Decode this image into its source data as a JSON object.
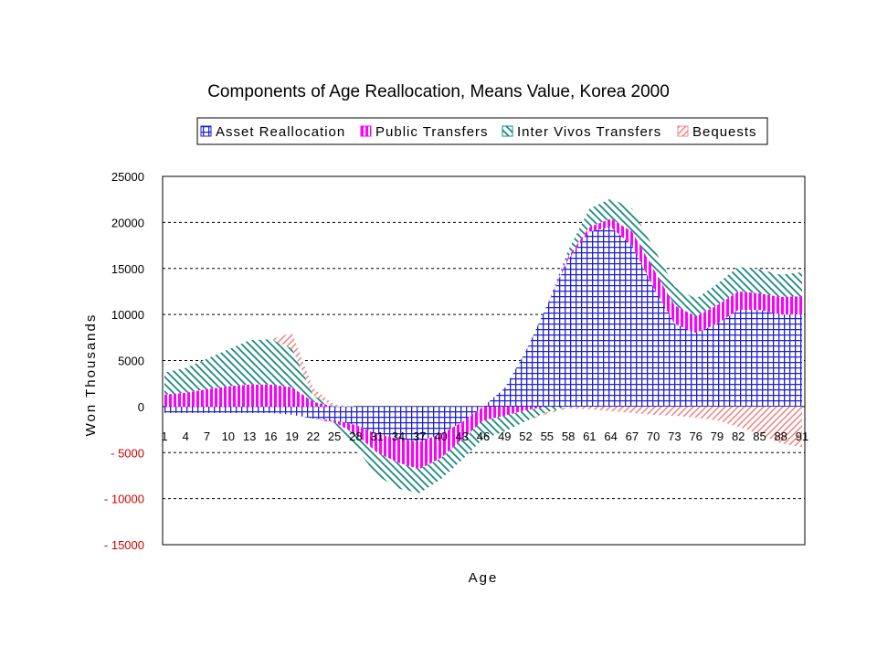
{
  "chart_data": {
    "type": "area",
    "stacked": true,
    "title": "Components of Age Reallocation, Means Value, Korea 2000",
    "xlabel": "Age",
    "ylabel": "Won Thousands",
    "ylim": [
      -15000,
      25000
    ],
    "ytick_labels": [
      "25000",
      "20000",
      "15000",
      "10000",
      "5000",
      "0",
      "- 5000",
      "- 10000",
      "- 15000"
    ],
    "grid": true,
    "legend_position": "top",
    "x_anchor_ages": [
      1,
      4,
      7,
      10,
      13,
      16,
      19,
      22,
      25,
      28,
      31,
      34,
      37,
      40,
      43,
      46,
      49,
      52,
      55,
      58,
      61,
      64,
      67,
      70,
      73,
      76,
      79,
      82,
      85,
      88,
      91
    ],
    "xtick_labels": [
      "1",
      "4",
      "7",
      "10",
      "13",
      "16",
      "19",
      "22",
      "25",
      "28",
      "31",
      "34",
      "37",
      "40",
      "43",
      "46",
      "49",
      "52",
      "55",
      "58",
      "61",
      "64",
      "67",
      "70",
      "73",
      "76",
      "79",
      "82",
      "85",
      "88",
      "91"
    ],
    "series": [
      {
        "name": "Asset Reallocation",
        "color": "#1f1fd0",
        "pattern": "grid",
        "values": [
          -700,
          -700,
          -700,
          -700,
          -700,
          -700,
          -900,
          -1300,
          -1500,
          -2000,
          -3000,
          -3500,
          -3800,
          -3000,
          -1700,
          0,
          2000,
          6000,
          11000,
          16000,
          19000,
          19500,
          17500,
          13000,
          9000,
          8000,
          9000,
          10500,
          10500,
          10000,
          10000
        ]
      },
      {
        "name": "Public Transfers",
        "color": "#ff00ff",
        "pattern": "vertical",
        "values": [
          1300,
          1500,
          1900,
          2200,
          2400,
          2400,
          2100,
          500,
          -200,
          -1000,
          -2000,
          -2600,
          -3000,
          -2600,
          -1900,
          -1500,
          -1000,
          -400,
          0,
          300,
          500,
          900,
          1500,
          2000,
          2000,
          1800,
          2000,
          2000,
          1800,
          1900,
          2000
        ]
      },
      {
        "name": "Inter Vivos Transfers",
        "color": "#1a8a80",
        "pattern": "diagonal",
        "values": [
          2400,
          2700,
          3300,
          4000,
          4800,
          4900,
          4200,
          700,
          -100,
          -1500,
          -2500,
          -2800,
          -2600,
          -2300,
          -2200,
          -2000,
          -1700,
          -1200,
          -600,
          700,
          2000,
          2200,
          2500,
          2300,
          2000,
          1900,
          2300,
          2700,
          2600,
          2400,
          2600
        ]
      },
      {
        "name": "Bequests",
        "color": "#f08a8a",
        "pattern": "diagonal",
        "values": [
          0,
          0,
          0,
          0,
          0,
          0,
          1700,
          800,
          200,
          0,
          0,
          0,
          0,
          0,
          0,
          0,
          0,
          0,
          -200,
          -200,
          -300,
          -500,
          -700,
          -900,
          -1000,
          -1200,
          -1500,
          -2200,
          -3000,
          -4000,
          -4400
        ]
      }
    ]
  }
}
